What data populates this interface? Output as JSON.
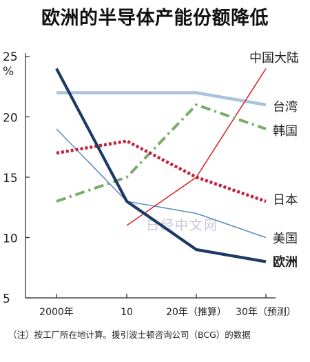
{
  "title": "欧洲的半导体产能份额降低",
  "watermark": "日经中文网",
  "note": "（注）按工厂所在地计算。援引波士顿咨询公司（BCG）的数据",
  "chart_data": {
    "type": "line",
    "title": "欧洲的半导体产能份额降低",
    "ylabel": "%",
    "y_unit_tick": "25",
    "ylim": [
      5,
      25
    ],
    "yticks": [
      5,
      10,
      15,
      20,
      25
    ],
    "categories": [
      "2000年",
      "10",
      "20年（推算）",
      "30年（预测）"
    ],
    "x": [
      0,
      1,
      2,
      3
    ],
    "series": [
      {
        "name": "中国大陆",
        "values": [
          null,
          11,
          15,
          24
        ],
        "color": "#d42a2a",
        "style": "solid-thin",
        "label_bold": false
      },
      {
        "name": "台湾",
        "values": [
          22,
          22,
          22,
          21
        ],
        "color": "#a9c3dc",
        "style": "solid-thick",
        "label_bold": false
      },
      {
        "name": "韩国",
        "values": [
          13,
          15,
          21,
          19
        ],
        "color": "#79ab6b",
        "style": "dashdot",
        "label_bold": false
      },
      {
        "name": "日本",
        "values": [
          17,
          18,
          15,
          13
        ],
        "color": "#c4213a",
        "style": "dotted",
        "label_bold": false
      },
      {
        "name": "美国",
        "values": [
          19,
          13,
          12,
          10
        ],
        "color": "#5b8fc4",
        "style": "solid-thin",
        "label_bold": false
      },
      {
        "name": "欧洲",
        "values": [
          24,
          13,
          9,
          8
        ],
        "color": "#1c3a63",
        "style": "solid-heavy",
        "label_bold": true
      }
    ],
    "colors": {
      "axis": "#222222"
    }
  }
}
